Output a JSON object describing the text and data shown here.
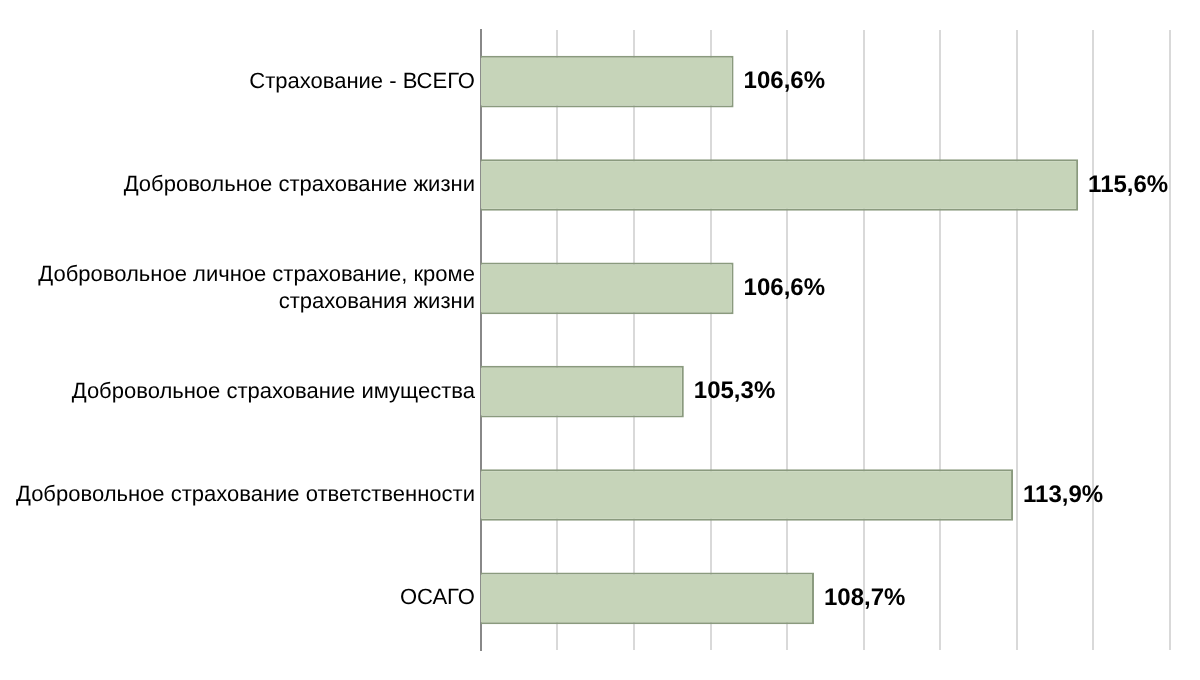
{
  "chart_data": {
    "type": "bar",
    "orientation": "horizontal",
    "categories": [
      "Страхование - ВСЕГО",
      "Добровольное страхование жизни",
      "Добровольное личное страхование, кроме страхования жизни",
      "Добровольное страхование имущества",
      "Добровольное страхование ответственности",
      "ОСАГО"
    ],
    "values": [
      106.6,
      115.6,
      106.6,
      105.3,
      113.9,
      108.7
    ],
    "value_labels": [
      "106,6%",
      "115,6%",
      "106,6%",
      "105,3%",
      "113,9%",
      "108,7%"
    ],
    "color": "#c6d4b9",
    "xlim": [
      100,
      118
    ],
    "xticks": [
      {
        "value": 100,
        "label": null
      },
      {
        "value": 102,
        "label": null
      },
      {
        "value": 104,
        "label": null
      },
      {
        "value": 106,
        "label": null
      },
      {
        "value": 108,
        "label": null
      },
      {
        "value": 110,
        "label": null
      },
      {
        "value": 112,
        "label": null
      },
      {
        "value": 114,
        "label": null
      },
      {
        "value": 116,
        "label": null
      },
      {
        "value": 118,
        "label": null
      }
    ],
    "tick_labels": "y",
    "grid": "x"
  }
}
